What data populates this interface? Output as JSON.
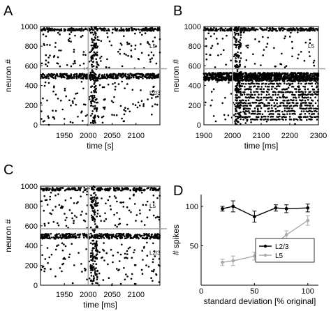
{
  "chart_data": [
    {
      "panel_label": "A",
      "type": "scatter",
      "xlabel": "time [s]",
      "ylabel": "neuron #",
      "xlim": [
        1900,
        2150
      ],
      "ylim": [
        0,
        1000
      ],
      "xticks": [
        "1950",
        "2000",
        "2050",
        "2100"
      ],
      "yticks": [
        "0",
        "200",
        "400",
        "600",
        "800",
        "1000"
      ],
      "marker_line_time": 2000,
      "population_boundary": 570,
      "annotations": [
        "L5",
        "L2/3"
      ],
      "raster": {
        "l5_band": {
          "neurons": [
            955,
            985
          ],
          "density": "high"
        },
        "l23_band": {
          "neurons": [
            470,
            520
          ],
          "density": "high"
        },
        "burst_time": [
          2005,
          2020
        ]
      }
    },
    {
      "panel_label": "B",
      "type": "scatter",
      "xlabel": "time [ms]",
      "ylabel": "neuron #",
      "xlim": [
        1900,
        2300
      ],
      "ylim": [
        0,
        1000
      ],
      "xticks": [
        "1900",
        "2000",
        "2100",
        "2200",
        "2300"
      ],
      "yticks": [
        "0",
        "200",
        "400",
        "600",
        "800",
        "1000"
      ],
      "marker_line_time": 2000,
      "population_boundary": 570,
      "annotations": [
        "L5",
        "L2/3"
      ],
      "raster": {
        "l5_band": {
          "neurons": [
            955,
            985
          ],
          "density": "high"
        },
        "l23_band": {
          "neurons": [
            450,
            530
          ],
          "density": "very high"
        },
        "striped_region": {
          "time": [
            2010,
            2300
          ],
          "neurons": [
            50,
            480
          ]
        },
        "burst_time": [
          2005,
          2030
        ]
      }
    },
    {
      "panel_label": "C",
      "type": "scatter",
      "xlabel": "time [ms]",
      "ylabel": "neuron #",
      "xlim": [
        1900,
        2150
      ],
      "ylim": [
        0,
        1000
      ],
      "xticks": [
        "1950",
        "2000",
        "2050",
        "2100"
      ],
      "yticks": [
        "0",
        "200",
        "400",
        "600",
        "800",
        "1000"
      ],
      "marker_line_time": 2000,
      "population_boundary": 570,
      "annotations": [
        "L5",
        "L2/3"
      ],
      "raster": {
        "l5_band": {
          "neurons": [
            955,
            985
          ],
          "density": "high"
        },
        "l23_band": {
          "neurons": [
            470,
            520
          ],
          "density": "high"
        },
        "burst_time": [
          2005,
          2020
        ]
      }
    },
    {
      "panel_label": "D",
      "type": "line",
      "xlabel": "standard deviation [% original]",
      "ylabel": "# spikes",
      "xlim": [
        0,
        110
      ],
      "ylim": [
        0,
        115
      ],
      "xticks": [
        "0",
        "50",
        "100"
      ],
      "yticks": [
        "50",
        "100"
      ],
      "legend_position": "bottom-right",
      "series": [
        {
          "name": "L2/3",
          "color": "#000000",
          "x": [
            20,
            30,
            50,
            70,
            80,
            100
          ],
          "y": [
            97,
            100,
            87,
            98,
            97,
            98
          ],
          "err": [
            3,
            7,
            7,
            4,
            5,
            5
          ]
        },
        {
          "name": "L5",
          "color": "#aaaaaa",
          "x": [
            20,
            30,
            50,
            70,
            80,
            100
          ],
          "y": [
            29,
            31,
            37,
            53,
            64,
            82
          ],
          "err": [
            4,
            6,
            5,
            4,
            5,
            6
          ]
        }
      ]
    }
  ]
}
